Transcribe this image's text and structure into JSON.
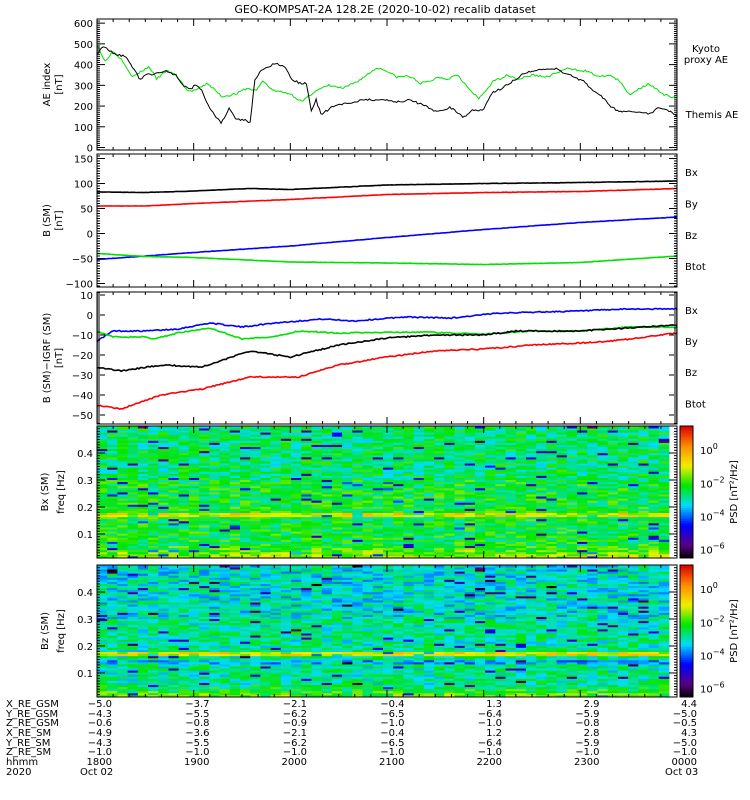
{
  "title": "GEO-KOMPSAT-2A 128.2E (2020-10-02) recalib dataset",
  "chart_data": [
    {
      "type": "line",
      "ylabel": "AE index",
      "yunit": "[nT]",
      "ylim": [
        -12,
        620
      ],
      "yticks": [
        0,
        100,
        200,
        300,
        400,
        500,
        600
      ],
      "x_unit": "minutes since 2020-10-02 18:00",
      "xlim": [
        0,
        360
      ],
      "series": [
        {
          "name": "Kyoto proxy AE",
          "legend": [
            "Kyoto",
            "proxy AE"
          ],
          "color": "#00e000",
          "x": [
            0,
            4.8,
            9.9,
            15.9,
            22,
            28,
            32.5,
            37,
            43,
            49,
            56.6,
            62.6,
            68.6,
            77.6,
            86.7,
            92.7,
            98.7,
            103,
            109.3,
            119.8,
            127.3,
            134.8,
            143.8,
            152.9,
            161.9,
            173.9,
            179.9,
            185.9,
            193.5,
            201,
            207,
            211.6,
            217.6,
            223.6,
            231,
            237.1,
            246.1,
            255.1,
            261.2,
            270.2,
            279.2,
            291.2,
            303.3,
            312.3,
            318.3,
            324.3,
            330.3,
            342.3,
            351.4,
            360
          ],
          "y": [
            500,
            415,
            465,
            420,
            340,
            370,
            390,
            330,
            370,
            350,
            270,
            280,
            310,
            245,
            260,
            285,
            275,
            320,
            275,
            260,
            220,
            270,
            300,
            285,
            320,
            385,
            370,
            340,
            345,
            310,
            320,
            340,
            330,
            355,
            280,
            235,
            320,
            350,
            330,
            350,
            340,
            380,
            370,
            340,
            350,
            320,
            255,
            310,
            255,
            240
          ]
        },
        {
          "name": "Themis AE",
          "legend": [
            "Themis AE"
          ],
          "color": "#000000",
          "x": [
            0,
            3.9,
            11.4,
            18.1,
            22,
            26.5,
            31,
            38.5,
            43,
            49,
            53.6,
            58,
            61,
            65.6,
            68.6,
            73,
            77,
            82,
            86.7,
            92.7,
            95,
            98,
            103,
            110.8,
            116.8,
            121,
            125.8,
            130,
            133,
            136,
            139,
            147,
            156,
            166.5,
            177,
            187.5,
            193.5,
            201,
            211.6,
            219,
            223.6,
            227.6,
            232.7,
            240,
            244.7,
            252,
            258,
            265.8,
            273,
            285,
            293,
            302,
            308,
            314,
            318.5,
            324.5,
            333.5,
            342.5,
            348.6,
            354.6,
            360
          ],
          "y": [
            450,
            490,
            450,
            440,
            390,
            330,
            350,
            360,
            370,
            350,
            300,
            280,
            305,
            270,
            210,
            160,
            115,
            190,
            135,
            130,
            120,
            330,
            380,
            405,
            390,
            330,
            310,
            310,
            180,
            230,
            160,
            200,
            215,
            230,
            230,
            220,
            230,
            210,
            170,
            195,
            170,
            145,
            180,
            180,
            260,
            290,
            320,
            360,
            375,
            380,
            350,
            320,
            270,
            240,
            200,
            170,
            175,
            160,
            190,
            180,
            150
          ]
        }
      ]
    },
    {
      "type": "line",
      "ylabel": "B (SM)",
      "yunit": "[nT]",
      "ylim": [
        -107,
        159
      ],
      "yticks": [
        -100,
        -50,
        0,
        50,
        100,
        150
      ],
      "xlim": [
        0,
        360
      ],
      "series": [
        {
          "name": "Bx",
          "color": "#0000ff",
          "x": [
            0,
            60,
            120,
            180,
            240,
            300,
            360
          ],
          "y": [
            -52,
            -38,
            -25,
            -8,
            8,
            22,
            33
          ]
        },
        {
          "name": "By",
          "color": "#00e000",
          "x": [
            0,
            30,
            60,
            120,
            180,
            240,
            300,
            360
          ],
          "y": [
            -40,
            -46,
            -48,
            -57,
            -59,
            -62,
            -58,
            -45
          ]
        },
        {
          "name": "Bz",
          "color": "#ff0000",
          "x": [
            0,
            30,
            60,
            120,
            180,
            240,
            300,
            360
          ],
          "y": [
            55,
            55,
            60,
            68,
            78,
            82,
            84,
            90
          ]
        },
        {
          "name": "Btot",
          "color": "#000000",
          "x": [
            0,
            30,
            60,
            95,
            120,
            180,
            240,
            300,
            360
          ],
          "y": [
            83,
            82,
            85,
            90,
            88,
            97,
            100,
            102,
            105
          ]
        }
      ]
    },
    {
      "type": "line",
      "ylabel": "B (SM)−IGRF (SM)",
      "yunit": "[nT]",
      "ylim": [
        -54.5,
        11.5
      ],
      "yticks": [
        -50,
        -40,
        -30,
        -20,
        -10,
        0,
        10
      ],
      "xlim": [
        0,
        360
      ],
      "series": [
        {
          "name": "Bx",
          "color": "#0000ff",
          "x": [
            0,
            10,
            30,
            50,
            70,
            90,
            110,
            140,
            160,
            190,
            220,
            250,
            300,
            330,
            360
          ],
          "y": [
            -13,
            -8,
            -8,
            -7,
            -4,
            -6,
            -4,
            -2,
            -3,
            -1,
            -1.5,
            1,
            2,
            3,
            3
          ]
        },
        {
          "name": "By",
          "color": "#00e000",
          "x": [
            0,
            10,
            30,
            35,
            50,
            70,
            90,
            110,
            125,
            150,
            200,
            240,
            270,
            300,
            330,
            360
          ],
          "y": [
            -8,
            -11,
            -11,
            -12,
            -9,
            -6.5,
            -12,
            -11,
            -8,
            -9,
            -8.5,
            -9.5,
            -8,
            -8,
            -6,
            -6
          ]
        },
        {
          "name": "Bz",
          "color": "#ff0000",
          "x": [
            0,
            15,
            40,
            65,
            80,
            95,
            125,
            150,
            180,
            210,
            240,
            270,
            300,
            320,
            360
          ],
          "y": [
            -45,
            -47,
            -40,
            -37,
            -34,
            -31,
            -31,
            -25,
            -21,
            -18,
            -17,
            -15,
            -14,
            -13,
            -9
          ]
        },
        {
          "name": "Btot",
          "color": "#000000",
          "x": [
            0,
            15,
            40,
            65,
            95,
            120,
            150,
            180,
            210,
            240,
            260,
            300,
            320,
            360
          ],
          "y": [
            -26,
            -28,
            -25,
            -26,
            -18,
            -21,
            -15,
            -11.5,
            -10,
            -10,
            -8,
            -8,
            -7,
            -5
          ]
        }
      ]
    },
    {
      "type": "heatmap",
      "ylabel": "Bx (SM)",
      "ylabel2": "freq [Hz]",
      "ylim": [
        0.011,
        0.5
      ],
      "yticks": [
        0.1,
        0.2,
        0.3,
        0.4
      ],
      "xlim": [
        0,
        360
      ],
      "colorbar": {
        "label": "PSD [nT²/Hz]",
        "log_range": [
          -6.5,
          1.45
        ],
        "ticks": [
          {
            "base": "10",
            "exp": "0",
            "v": 0
          },
          {
            "base": "10",
            "exp": "−2",
            "v": -2
          },
          {
            "base": "10",
            "exp": "−4",
            "v": -4
          },
          {
            "base": "10",
            "exp": "−6",
            "v": -6
          }
        ]
      },
      "background_logpsd": -2.3,
      "lowfreq_logpsd": -1.0,
      "bands": [
        {
          "freq": 0.17,
          "logpsd": -1.0
        }
      ],
      "seed": 7
    },
    {
      "type": "heatmap",
      "ylabel": "Bz (SM)",
      "ylabel2": "freq [Hz]",
      "ylim": [
        0.011,
        0.5
      ],
      "yticks": [
        0.1,
        0.2,
        0.3,
        0.4
      ],
      "xlim": [
        0,
        360
      ],
      "colorbar": {
        "label": "PSD [nT²/Hz]",
        "log_range": [
          -6.5,
          1.45
        ],
        "ticks": [
          {
            "base": "10",
            "exp": "0",
            "v": 0
          },
          {
            "base": "10",
            "exp": "−2",
            "v": -2
          },
          {
            "base": "10",
            "exp": "−4",
            "v": -4
          },
          {
            "base": "10",
            "exp": "−6",
            "v": -6
          }
        ]
      },
      "background_logpsd": -2.8,
      "lowfreq_logpsd": -1.3,
      "bands": [
        {
          "freq": 0.17,
          "logpsd": -1.0
        },
        {
          "freq": 0.14,
          "logpsd": -3.5
        }
      ],
      "seed": 13
    }
  ],
  "ephemeris": {
    "rows": [
      {
        "label": "X_RE_GSM",
        "values": [
          "−5.0",
          "−3.7",
          "−2.1",
          "−0.4",
          "1.3",
          "2.9",
          "4.4"
        ]
      },
      {
        "label": "Y_RE_GSM",
        "values": [
          "−4.3",
          "−5.5",
          "−6.2",
          "−6.5",
          "−6.4",
          "−5.9",
          "−5.0"
        ]
      },
      {
        "label": "Z_RE_GSM",
        "values": [
          "−0.6",
          "−0.8",
          "−0.9",
          "−1.0",
          "−1.0",
          "−0.8",
          "−0.5"
        ]
      },
      {
        "label": "X_RE_SM",
        "values": [
          "−4.9",
          "−3.6",
          "−2.1",
          "−0.4",
          "1.2",
          "2.8",
          "4.3"
        ]
      },
      {
        "label": "Y_RE_SM",
        "values": [
          "−4.3",
          "−5.5",
          "−6.2",
          "−6.5",
          "−6.4",
          "−5.9",
          "−5.0"
        ]
      },
      {
        "label": "Z_RE_SM",
        "values": [
          "−1.0",
          "−1.0",
          "−1.0",
          "−1.0",
          "−1.0",
          "−1.0",
          "−1.0"
        ]
      },
      {
        "label": "hhmm",
        "values": [
          "1800",
          "1900",
          "2000",
          "2100",
          "2200",
          "2300",
          "0000"
        ]
      },
      {
        "label": "2020",
        "values": [
          "Oct 02",
          "",
          "",
          "",
          "",
          "",
          "Oct 03"
        ]
      }
    ]
  }
}
